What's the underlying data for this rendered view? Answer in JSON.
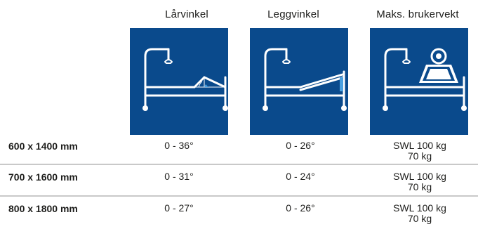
{
  "columns": [
    {
      "header": "Lårvinkel"
    },
    {
      "header": "Leggvinkel"
    },
    {
      "header": "Maks. brukervekt"
    }
  ],
  "rows": [
    {
      "label": "600 x 1400 mm",
      "thigh": "0 - 36°",
      "leg": "0 - 26°",
      "max1": "SWL 100 kg",
      "max2": "70 kg"
    },
    {
      "label": "700 x 1600 mm",
      "thigh": "0 - 31°",
      "leg": "0 - 24°",
      "max1": "SWL 100 kg",
      "max2": "70 kg"
    },
    {
      "label": "800 x 1800 mm",
      "thigh": "0 - 27°",
      "leg": "0 - 26°",
      "max1": "SWL 100 kg",
      "max2": "70 kg"
    }
  ],
  "colors": {
    "icon_background": "#0a4a8c",
    "icon_stroke": "#ffffff",
    "separator": "#c9c9c9"
  }
}
